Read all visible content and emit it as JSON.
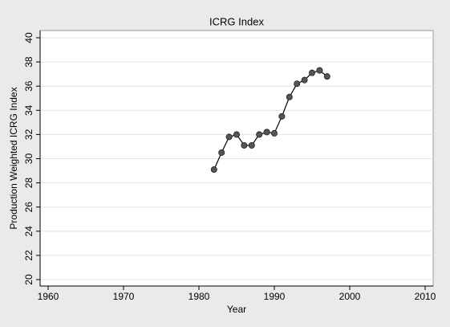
{
  "chart_data": {
    "type": "line",
    "title": "ICRG Index",
    "x_label": "Year",
    "y_label": "Production Weighted ICRG Index",
    "x": [
      1982,
      1983,
      1984,
      1985,
      1986,
      1987,
      1988,
      1989,
      1990,
      1991,
      1992,
      1993,
      1994,
      1995,
      1996,
      1997
    ],
    "series": [
      {
        "name": "ICRG Index",
        "color": "#555555",
        "values": [
          29.1,
          30.5,
          31.8,
          32.0,
          31.1,
          31.1,
          32.0,
          32.2,
          32.1,
          33.5,
          35.1,
          36.2,
          36.5,
          37.1,
          37.3,
          36.8
        ]
      }
    ],
    "xlim": [
      1960,
      2010
    ],
    "xticks": [
      1960,
      1970,
      1980,
      1990,
      2000,
      2010
    ],
    "ylim": [
      20,
      40
    ],
    "yticks": [
      20,
      22,
      24,
      26,
      28,
      30,
      32,
      34,
      36,
      38,
      40
    ],
    "grid": true
  }
}
